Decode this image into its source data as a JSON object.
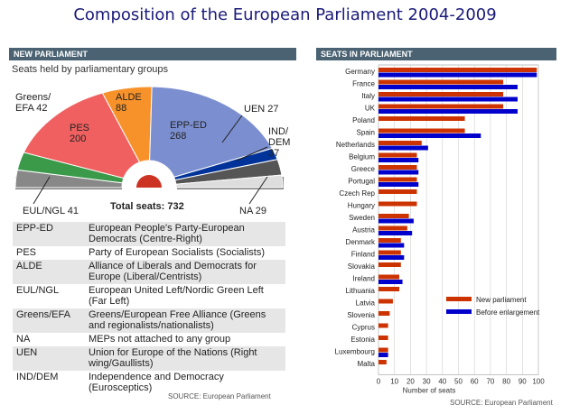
{
  "title": "Composition of the European Parliament 2004-2009",
  "left_panel": {
    "header": "NEW PARLIAMENT",
    "subtitle": "Seats held by parliamentary groups",
    "total": "Total seats: 732",
    "labels": {
      "greens": [
        "Greens/",
        "EFA 42"
      ],
      "pes": [
        "PES",
        "200"
      ],
      "alde": [
        "ALDE",
        "88"
      ],
      "epped": [
        "EPP-ED",
        "268"
      ],
      "uen": [
        "UEN 27"
      ],
      "inddem": [
        "IND/",
        "DEM",
        "37"
      ],
      "eul": [
        "EUL/NGL 41"
      ],
      "na": [
        "NA 29"
      ]
    },
    "table": [
      {
        "abbr": "EPP-ED",
        "desc": "European People's Party-European Democrats (Centre-Right)"
      },
      {
        "abbr": "PES",
        "desc": "Party of European Socialists (Socialists)"
      },
      {
        "abbr": "ALDE",
        "desc": "Alliance of Liberals and Democrats for Europe (Liberal/Centrists)"
      },
      {
        "abbr": "EUL/NGL",
        "desc": "European United Left/Nordic Green Left (Far Left)"
      },
      {
        "abbr": "Greens/EFA",
        "desc": "Greens/European Free Alliance (Greens and regionalists/nationalists)"
      },
      {
        "abbr": "NA",
        "desc": "MEPs not attached to any group"
      },
      {
        "abbr": "UEN",
        "desc": "Union for Europe of the Nations (Right wing/Gaullists)"
      },
      {
        "abbr": "IND/DEM",
        "desc": "Independence and Democracy (Eurosceptics)"
      }
    ],
    "source": "SOURCE: European Parliament"
  },
  "right_panel": {
    "header": "SEATS IN PARLIAMENT",
    "source": "SOURCE: European Parliament"
  },
  "colors": {
    "new_parliament": "#cc3300",
    "before_enlargement": "#0000cc",
    "epp_ed": "#7b8fd0",
    "pes": "#f06060",
    "alde": "#f7922a",
    "greens": "#3a9a4a",
    "eul": "#888888",
    "uen": "#003399",
    "ind_dem": "#555555",
    "na": "#dddddd"
  },
  "chart_data": [
    {
      "type": "pie",
      "title": "Seats held by parliamentary groups",
      "total": 732,
      "slices": [
        {
          "group": "EUL/NGL",
          "seats": 41
        },
        {
          "group": "Greens/EFA",
          "seats": 42
        },
        {
          "group": "PES",
          "seats": 200
        },
        {
          "group": "ALDE",
          "seats": 88
        },
        {
          "group": "EPP-ED",
          "seats": 268
        },
        {
          "group": "UEN",
          "seats": 27
        },
        {
          "group": "IND/DEM",
          "seats": 37
        },
        {
          "group": "NA",
          "seats": 29
        }
      ]
    },
    {
      "type": "bar",
      "orientation": "horizontal",
      "title": "SEATS IN PARLIAMENT",
      "xlabel": "Number of seats",
      "xlim": [
        0,
        100
      ],
      "xticks": [
        0,
        10,
        20,
        30,
        40,
        50,
        60,
        70,
        80,
        90,
        100
      ],
      "categories": [
        "Germany",
        "France",
        "Italy",
        "UK",
        "Poland",
        "Spain",
        "Netherlands",
        "Belgium",
        "Greece",
        "Portugal",
        "Czech Rep",
        "Hungary",
        "Sweden",
        "Austria",
        "Denmark",
        "Finland",
        "Slovakia",
        "Ireland",
        "Lithuania",
        "Latvia",
        "Slovenia",
        "Cyprus",
        "Estonia",
        "Luxembourg",
        "Malta"
      ],
      "series": [
        {
          "name": "New parliament",
          "values": [
            99,
            78,
            78,
            78,
            54,
            54,
            27,
            24,
            24,
            24,
            24,
            24,
            19,
            18,
            14,
            14,
            14,
            13,
            13,
            9,
            7,
            6,
            6,
            6,
            5
          ]
        },
        {
          "name": "Before enlargement",
          "values": [
            99,
            87,
            87,
            87,
            null,
            64,
            31,
            25,
            25,
            25,
            null,
            null,
            22,
            21,
            16,
            16,
            null,
            15,
            null,
            null,
            null,
            null,
            null,
            6,
            null
          ]
        }
      ],
      "legend": "bottom-right"
    }
  ]
}
